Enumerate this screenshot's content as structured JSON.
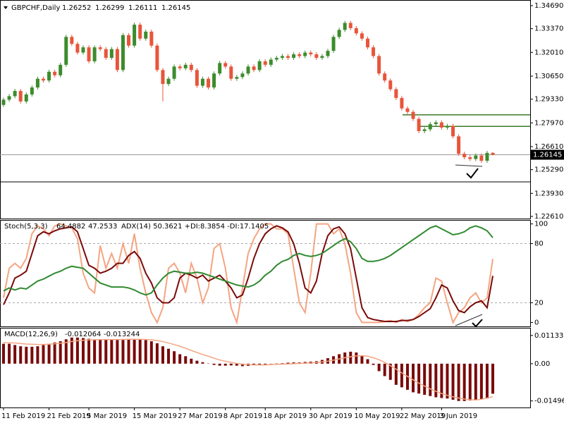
{
  "chart_data": [
    {
      "type": "candlestick",
      "title": "GBPCHF,Daily",
      "up_color": "#3c8c2c",
      "down_color": "#e8553a",
      "categories": [
        "11 Feb 2019",
        null,
        null,
        null,
        null,
        null,
        null,
        null,
        "21 Feb 2019",
        null,
        null,
        null,
        null,
        null,
        null,
        "5 Mar 2019",
        null,
        null,
        null,
        null,
        null,
        null,
        null,
        "15 Mar 2019",
        null,
        null,
        null,
        null,
        null,
        null,
        null,
        "27 Mar 2019",
        null,
        null,
        null,
        null,
        null,
        null,
        null,
        "8 Apr 2019",
        null,
        null,
        null,
        null,
        null,
        null,
        "18 Apr 2019",
        null,
        null,
        null,
        null,
        null,
        null,
        null,
        "30 Apr 2019",
        null,
        null,
        null,
        null,
        null,
        null,
        null,
        "10 May 2019",
        null,
        null,
        null,
        null,
        null,
        null,
        null,
        "22 May 2019",
        null,
        null,
        null,
        null,
        null,
        null,
        "3 Jun 2019",
        null,
        null,
        null,
        null,
        null,
        null,
        null,
        null,
        null
      ],
      "open": [
        1.29,
        1.293,
        1.295,
        1.298,
        1.292,
        1.296,
        1.3,
        1.305,
        1.304,
        1.309,
        1.307,
        1.313,
        1.329,
        1.325,
        1.32,
        1.323,
        1.315,
        1.323,
        1.322,
        1.317,
        1.322,
        1.31,
        1.33,
        1.324,
        1.336,
        1.328,
        1.332,
        1.324,
        1.31,
        1.302,
        1.305,
        1.312,
        1.311,
        1.313,
        1.31,
        1.301,
        1.305,
        1.3,
        1.308,
        1.314,
        1.312,
        1.305,
        1.306,
        1.308,
        1.312,
        1.31,
        1.315,
        1.313,
        1.316,
        1.317,
        1.318,
        1.317,
        1.319,
        1.318,
        1.32,
        1.319,
        1.317,
        1.318,
        1.321,
        1.329,
        1.333,
        1.337,
        1.334,
        1.331,
        1.328,
        1.323,
        1.318,
        1.308,
        1.304,
        1.299,
        1.294,
        1.288,
        1.286,
        1.282,
        1.275,
        1.276,
        1.279,
        1.28,
        1.277,
        1.278,
        1.272,
        1.262,
        1.26,
        1.259,
        1.261,
        1.258,
        1.26252
      ],
      "high": [
        1.2942,
        1.2962,
        1.2992,
        1.2992,
        1.2972,
        1.3012,
        1.3062,
        1.3062,
        1.3102,
        1.3102,
        1.3142,
        1.3302,
        1.3302,
        1.3262,
        1.3242,
        1.3242,
        1.3242,
        1.3242,
        1.3232,
        1.3232,
        1.3232,
        1.3312,
        1.3312,
        1.3372,
        1.3372,
        1.3332,
        1.3332,
        1.3252,
        1.3112,
        1.3062,
        1.3132,
        1.3132,
        1.3142,
        1.3142,
        1.3112,
        1.3062,
        1.3062,
        1.3092,
        1.3152,
        1.3152,
        1.3132,
        1.3072,
        1.3092,
        1.3132,
        1.3132,
        1.3162,
        1.3162,
        1.3172,
        1.3182,
        1.3192,
        1.3192,
        1.3202,
        1.3202,
        1.3212,
        1.3212,
        1.3202,
        1.3192,
        1.3222,
        1.3302,
        1.3342,
        1.3382,
        1.3382,
        1.3352,
        1.3322,
        1.3292,
        1.3242,
        1.3192,
        1.3092,
        1.3052,
        1.3002,
        1.2952,
        1.2892,
        1.2872,
        1.2832,
        1.2772,
        1.2802,
        1.2812,
        1.2812,
        1.2792,
        1.2792,
        1.2732,
        1.2632,
        1.2612,
        1.2622,
        1.2622,
        1.2637,
        1.26299
      ],
      "low": [
        1.2888,
        1.2918,
        1.2938,
        1.2908,
        1.2908,
        1.2948,
        1.2988,
        1.3028,
        1.3028,
        1.3058,
        1.3058,
        1.3118,
        1.3238,
        1.3188,
        1.3188,
        1.3138,
        1.3138,
        1.3208,
        1.3158,
        1.3158,
        1.3088,
        1.3088,
        1.3228,
        1.3228,
        1.3268,
        1.3268,
        1.3228,
        1.3088,
        1.292,
        1.3008,
        1.3038,
        1.3098,
        1.3098,
        1.3088,
        1.2998,
        1.2998,
        1.2988,
        1.2988,
        1.3068,
        1.3108,
        1.3038,
        1.3038,
        1.3048,
        1.3068,
        1.3088,
        1.3088,
        1.3118,
        1.3118,
        1.3148,
        1.3158,
        1.3158,
        1.3158,
        1.3168,
        1.3168,
        1.3178,
        1.3158,
        1.3158,
        1.3168,
        1.3198,
        1.3278,
        1.3318,
        1.3328,
        1.3298,
        1.3268,
        1.3218,
        1.3168,
        1.3068,
        1.3028,
        1.2978,
        1.2928,
        1.2868,
        1.2848,
        1.2808,
        1.2738,
        1.2738,
        1.2748,
        1.2778,
        1.2758,
        1.2758,
        1.2708,
        1.2608,
        1.2588,
        1.2578,
        1.2578,
        1.2568,
        1.2568,
        1.26111
      ],
      "close": [
        1.293,
        1.295,
        1.298,
        1.292,
        1.296,
        1.3,
        1.305,
        1.304,
        1.309,
        1.307,
        1.313,
        1.329,
        1.325,
        1.32,
        1.323,
        1.315,
        1.323,
        1.322,
        1.317,
        1.322,
        1.31,
        1.33,
        1.324,
        1.336,
        1.328,
        1.332,
        1.324,
        1.31,
        1.302,
        1.305,
        1.312,
        1.311,
        1.313,
        1.31,
        1.301,
        1.305,
        1.3,
        1.308,
        1.314,
        1.312,
        1.305,
        1.306,
        1.308,
        1.312,
        1.31,
        1.315,
        1.313,
        1.316,
        1.317,
        1.318,
        1.317,
        1.319,
        1.318,
        1.32,
        1.319,
        1.317,
        1.318,
        1.321,
        1.329,
        1.333,
        1.337,
        1.334,
        1.331,
        1.328,
        1.323,
        1.318,
        1.308,
        1.304,
        1.299,
        1.294,
        1.288,
        1.286,
        1.282,
        1.275,
        1.276,
        1.279,
        1.28,
        1.277,
        1.278,
        1.272,
        1.262,
        1.26,
        1.259,
        1.261,
        1.258,
        1.26252,
        1.26145
      ],
      "levels": [
        {
          "value": 1.2843,
          "color": "#3c7a2a"
        },
        {
          "value": 1.2777,
          "color": "#3c7a2a"
        },
        {
          "value": 1.2459,
          "color": "#000000"
        }
      ],
      "ylim": [
        1.22488,
        1.35013
      ],
      "yticks": [
        {
          "value": 1.3469,
          "label": "1.34690"
        },
        {
          "value": 1.3337,
          "label": "1.33370"
        },
        {
          "value": 1.3201,
          "label": "1.32010"
        },
        {
          "value": 1.3065,
          "label": "1.30650"
        },
        {
          "value": 1.2933,
          "label": "1.29330"
        },
        {
          "value": 1.2797,
          "label": "1.27970"
        },
        {
          "value": 1.2661,
          "label": "1.26610"
        },
        {
          "value": 1.2529,
          "label": "1.25290"
        },
        {
          "value": 1.2393,
          "label": "1.23930"
        },
        {
          "value": 1.2261,
          "label": "1.22610"
        }
      ]
    },
    {
      "type": "line",
      "title": "Stoch(5,3,3)",
      "adx_label": "ADX(14) 50.3621 +DI:8.3854 -DI:17.1405",
      "series": [
        {
          "color": "#f4a582",
          "values": [
            25,
            55,
            60,
            55,
            65,
            90,
            98,
            95,
            88,
            98,
            100,
            98,
            96,
            85,
            50,
            35,
            30,
            78,
            55,
            70,
            55,
            80,
            60,
            90,
            55,
            30,
            10,
            0,
            15,
            55,
            60,
            50,
            30,
            60,
            45,
            20,
            35,
            75,
            80,
            55,
            15,
            0,
            35,
            70,
            85,
            95,
            100,
            100,
            95,
            95,
            90,
            55,
            20,
            10,
            50,
            100,
            100,
            100,
            90,
            95,
            80,
            50,
            10,
            0,
            0,
            0,
            0,
            1,
            2,
            0,
            3,
            1,
            3,
            8,
            15,
            20,
            45,
            42,
            20,
            0,
            10,
            15,
            25,
            30,
            20,
            25,
            64.4882
          ]
        },
        {
          "color": "#7a0a0a",
          "values": [
            18,
            30,
            45,
            48,
            52,
            70,
            88,
            92,
            90,
            93,
            95,
            96,
            97,
            92,
            75,
            58,
            55,
            50,
            52,
            55,
            60,
            60,
            68,
            72,
            65,
            50,
            40,
            25,
            20,
            20,
            25,
            45,
            50,
            48,
            45,
            48,
            42,
            45,
            48,
            42,
            35,
            25,
            28,
            45,
            65,
            80,
            90,
            95,
            98,
            96,
            92,
            80,
            60,
            35,
            30,
            42,
            70,
            88,
            95,
            97,
            90,
            75,
            45,
            15,
            5,
            3,
            2,
            1,
            1,
            1,
            2,
            2,
            3,
            6,
            10,
            14,
            25,
            38,
            35,
            22,
            12,
            10,
            16,
            20,
            22,
            15,
            47.2533
          ]
        },
        {
          "color": "#2f8a2f",
          "values": [
            32,
            35,
            33,
            35,
            34,
            38,
            42,
            44,
            47,
            50,
            52,
            55,
            57,
            56,
            55,
            50,
            45,
            40,
            38,
            36,
            36,
            36,
            35,
            33,
            30,
            28,
            30,
            38,
            45,
            50,
            52,
            51,
            50,
            50,
            51,
            50,
            48,
            46,
            44,
            42,
            40,
            38,
            37,
            36,
            38,
            42,
            48,
            52,
            58,
            62,
            64,
            68,
            70,
            68,
            67,
            68,
            70,
            74,
            78,
            82,
            85,
            82,
            75,
            65,
            62,
            62,
            63,
            65,
            68,
            72,
            76,
            80,
            84,
            88,
            92,
            96,
            98,
            95,
            92,
            89,
            90,
            92,
            96,
            98,
            96,
            93,
            86
          ]
        }
      ],
      "levels": [
        20,
        80
      ],
      "ylim": [
        -4,
        104
      ],
      "yticks": [
        100,
        80,
        20,
        0
      ]
    },
    {
      "type": "macd",
      "title": "MACD(12,26,9)",
      "bar_color": "#7a0a0a",
      "line_color": "#f4a582",
      "macd": [
        0.008,
        0.008,
        0.0075,
        0.007,
        0.0068,
        0.0068,
        0.007,
        0.0075,
        0.008,
        0.0085,
        0.009,
        0.0098,
        0.0105,
        0.0105,
        0.0103,
        0.01,
        0.0098,
        0.0097,
        0.0097,
        0.0098,
        0.0098,
        0.0099,
        0.0099,
        0.01,
        0.0098,
        0.0095,
        0.009,
        0.0082,
        0.007,
        0.006,
        0.005,
        0.0038,
        0.003,
        0.002,
        0.0012,
        0.0006,
        0.0001,
        -0.0005,
        -0.0008,
        -0.0008,
        -0.0007,
        -0.0008,
        -0.001,
        -0.0009,
        -0.0006,
        -0.0005,
        -0.0003,
        -0.0001,
        0.0001,
        0.0002,
        0.0004,
        0.0005,
        0.0005,
        0.0007,
        0.0008,
        0.001,
        0.0015,
        0.0022,
        0.003,
        0.0038,
        0.0045,
        0.0048,
        0.0045,
        0.0033,
        0.0018,
        -0.0005,
        -0.003,
        -0.005,
        -0.0065,
        -0.0085,
        -0.0095,
        -0.0105,
        -0.0115,
        -0.012,
        -0.0125,
        -0.013,
        -0.0135,
        -0.0138,
        -0.014,
        -0.0145,
        -0.015,
        -0.015,
        -0.0148,
        -0.0145,
        -0.0143,
        -0.014,
        -0.012064
      ],
      "signal": [
        0.0085,
        0.0084,
        0.0083,
        0.0081,
        0.0079,
        0.0078,
        0.0077,
        0.0077,
        0.0078,
        0.008,
        0.0082,
        0.0085,
        0.0089,
        0.0092,
        0.0094,
        0.0096,
        0.0096,
        0.0097,
        0.0097,
        0.0097,
        0.0097,
        0.0097,
        0.0098,
        0.0098,
        0.0098,
        0.0097,
        0.0096,
        0.0093,
        0.0089,
        0.0083,
        0.0077,
        0.007,
        0.0062,
        0.0053,
        0.0045,
        0.0037,
        0.003,
        0.0022,
        0.0015,
        0.001,
        0.0005,
        0.0001,
        -0.0002,
        -0.0004,
        -0.0005,
        -0.0005,
        -0.0005,
        -0.0004,
        -0.0003,
        -0.0002,
        -0.0001,
        0,
        0.0001,
        0.0002,
        0.0003,
        0.0005,
        0.0007,
        0.001,
        0.0014,
        0.0019,
        0.0024,
        0.0028,
        0.0031,
        0.0032,
        0.003,
        0.0024,
        0.0016,
        0.0005,
        -0.0008,
        -0.0022,
        -0.0037,
        -0.0051,
        -0.0065,
        -0.0078,
        -0.009,
        -0.0101,
        -0.0111,
        -0.012,
        -0.0127,
        -0.0133,
        -0.0138,
        -0.0142,
        -0.0145,
        -0.0146,
        -0.0143,
        -0.0138,
        -0.013244
      ],
      "ylim": [
        -0.0176,
        0.0144
      ],
      "yticks": [
        0.011333,
        {
          "value": 0,
          "label": "0.00"
        },
        -0.014965
      ]
    }
  ]
}
